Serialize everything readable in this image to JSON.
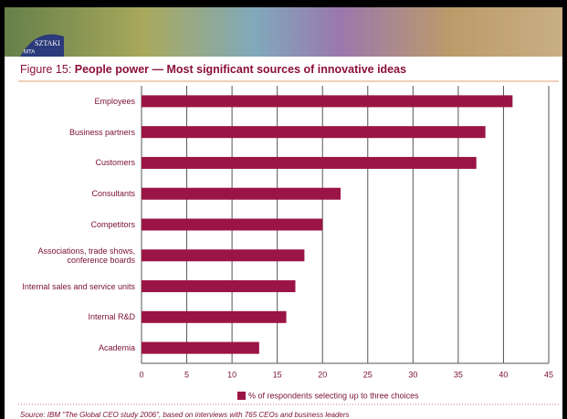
{
  "banner": {
    "logo_top": "MTA",
    "logo_bottom": "SZTAKI"
  },
  "chart_data": {
    "type": "bar",
    "orientation": "horizontal",
    "title_prefix": "Figure 15:",
    "title": "People power — Most significant sources of innovative ideas",
    "categories": [
      "Employees",
      "Business partners",
      "Customers",
      "Consultants",
      "Competitors",
      "Associations, trade shows, conference boards",
      "Internal sales and service units",
      "Internal R&D",
      "Academia"
    ],
    "series": [
      {
        "name": "% of respondents selecting up to three choices",
        "color": "#9b1446",
        "values": [
          41,
          38,
          37,
          22,
          20,
          18,
          17,
          16,
          13
        ]
      }
    ],
    "xlim": [
      0,
      45
    ],
    "xticks": [
      0,
      5,
      10,
      15,
      20,
      25,
      30,
      35,
      40,
      45
    ],
    "grid": true,
    "source": "Source: IBM \"The Global CEO study 2006\", based on interviews with 765 CEOs and business leaders"
  }
}
